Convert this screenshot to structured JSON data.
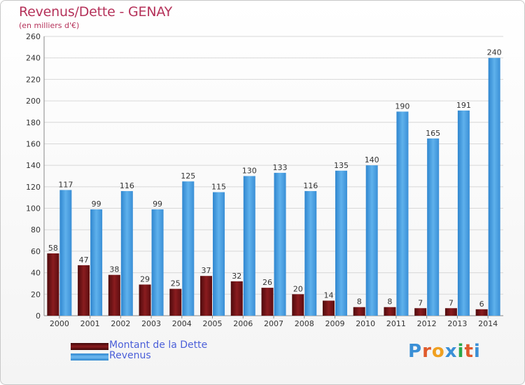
{
  "title": "Revenus/Dette - GENAY",
  "subtitle": "(en milliers d'€)",
  "brand": "Proxiti",
  "colors": {
    "title": "#b5325a",
    "dette": "#7a1518",
    "revenus": "#4aa0e2",
    "grid": "#d8d8d8",
    "legend_text": "#4b5fd9"
  },
  "chart_data": {
    "type": "bar",
    "categories": [
      "2000",
      "2001",
      "2002",
      "2003",
      "2004",
      "2005",
      "2006",
      "2007",
      "2008",
      "2009",
      "2010",
      "2011",
      "2012",
      "2013",
      "2014"
    ],
    "series": [
      {
        "name": "Montant de la Dette",
        "values": [
          58,
          47,
          38,
          29,
          25,
          37,
          32,
          26,
          20,
          14,
          8,
          8,
          7,
          7,
          6
        ]
      },
      {
        "name": "Revenus",
        "values": [
          117,
          99,
          116,
          99,
          125,
          115,
          130,
          133,
          116,
          135,
          140,
          190,
          165,
          191,
          240
        ]
      }
    ],
    "ylim": [
      0,
      260
    ],
    "yticks": [
      0,
      20,
      40,
      60,
      80,
      100,
      120,
      140,
      160,
      180,
      200,
      220,
      240,
      260
    ],
    "grid": true,
    "legend": "bottom-left"
  }
}
